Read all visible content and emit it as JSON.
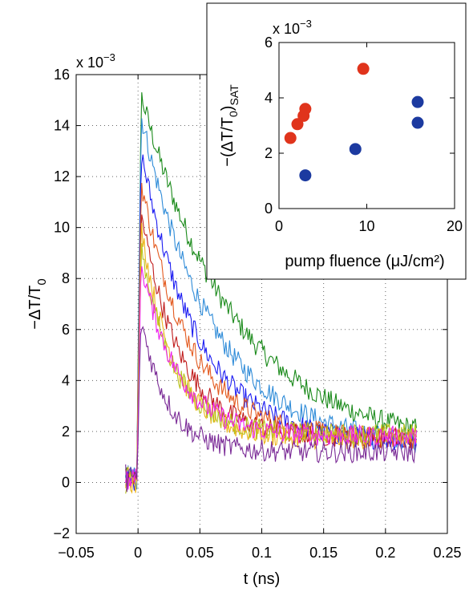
{
  "chart_data": [
    {
      "type": "line",
      "title": "",
      "xlabel": "t (ns)",
      "ylabel": "-ΔT/T₀",
      "xlim": [
        -0.05,
        0.25
      ],
      "ylim": [
        -2,
        16
      ],
      "xticks": [
        "−0.05",
        "0",
        "0.05",
        "0.1",
        "0.15",
        "0.2",
        "0.25"
      ],
      "yticks": [
        "−2",
        "0",
        "2",
        "4",
        "6",
        "8",
        "10",
        "12",
        "14",
        "16"
      ],
      "y_multiplier": "x 10",
      "y_multiplier_exp": "−3",
      "grid": "dotted",
      "series": [
        {
          "color": "#1a8a1a",
          "peak": 15.2,
          "tau": 0.075,
          "base": 1.4
        },
        {
          "color": "#2e8bd8",
          "peak": 14.4,
          "tau": 0.058,
          "base": 1.35
        },
        {
          "color": "#1c1cf2",
          "peak": 13.0,
          "tau": 0.045,
          "base": 1.55
        },
        {
          "color": "#e35a1f",
          "peak": 11.8,
          "tau": 0.04,
          "base": 1.7
        },
        {
          "color": "#c01c1c",
          "peak": 10.6,
          "tau": 0.032,
          "base": 1.75
        },
        {
          "color": "#ecb51c",
          "peak": 10.1,
          "tau": 0.026,
          "base": 1.7
        },
        {
          "color": "#b8c21e",
          "peak": 9.3,
          "tau": 0.026,
          "base": 1.9
        },
        {
          "color": "#ee22ee",
          "peak": 8.6,
          "tau": 0.03,
          "base": 1.8
        },
        {
          "color": "#7a2a96",
          "peak": 6.4,
          "tau": 0.022,
          "base": 1.2
        }
      ]
    },
    {
      "type": "scatter",
      "title": "",
      "xlabel": "pump fluence (μJ/cm²)",
      "ylabel": "−(ΔT/T₀)SAT",
      "xlim": [
        0,
        20
      ],
      "ylim": [
        0,
        6
      ],
      "xticks": [
        "0",
        "10",
        "20"
      ],
      "yticks": [
        "0",
        "2",
        "4",
        "6"
      ],
      "y_multiplier": "x 10",
      "y_multiplier_exp": "−3",
      "series": [
        {
          "color": "#e0341c",
          "points": [
            [
              1.3,
              2.55
            ],
            [
              2.1,
              3.05
            ],
            [
              2.8,
              3.35
            ],
            [
              3.0,
              3.6
            ],
            [
              9.6,
              5.05
            ]
          ]
        },
        {
          "color": "#1c3aa0",
          "points": [
            [
              3.0,
              1.2
            ],
            [
              8.7,
              2.15
            ],
            [
              15.8,
              3.85
            ],
            [
              15.8,
              3.1
            ]
          ]
        }
      ]
    }
  ]
}
